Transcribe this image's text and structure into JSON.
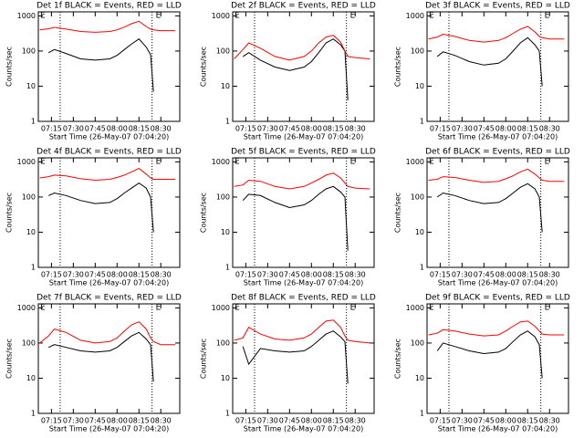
{
  "chart_data": [
    {
      "type": "line",
      "title": "Det 1f BLACK = Events, RED = LLD",
      "xlabel": "Start Time (26-May-07 07:04:20)",
      "ylabel": "Counts/sec",
      "log_y": true,
      "xlim": [
        "07:06",
        "08:43"
      ],
      "ylim": [
        1,
        1300
      ],
      "yticks": [
        1,
        10,
        100,
        1000
      ],
      "xticks": [
        "07:15",
        "07:30",
        "07:45",
        "08:00",
        "08:15",
        "08:30"
      ],
      "vlines": [
        "07:21",
        "08:24"
      ],
      "annotations": [
        "E",
        "E"
      ],
      "x": [
        "07:07",
        "07:13",
        "07:17",
        "07:25",
        "07:35",
        "07:45",
        "07:55",
        "08:00",
        "08:05",
        "08:10",
        "08:15",
        "08:20",
        "08:23",
        "08:25",
        "08:30",
        "08:40"
      ],
      "series": [
        {
          "color": "#000000",
          "values": [
            null,
            90,
            110,
            85,
            60,
            55,
            60,
            75,
            110,
            160,
            220,
            130,
            80,
            7,
            null,
            null
          ]
        },
        {
          "color": "#ff0000",
          "values": [
            400,
            430,
            470,
            420,
            360,
            340,
            360,
            400,
            480,
            600,
            700,
            500,
            420,
            400,
            380,
            380
          ]
        }
      ]
    },
    {
      "type": "line",
      "title": "Det 2f BLACK = Events, RED = LLD",
      "xlabel": "Start Time (26-May-07 07:04:20)",
      "ylabel": "Counts/sec",
      "log_y": true,
      "xlim": [
        "07:06",
        "08:43"
      ],
      "ylim": [
        1,
        1300
      ],
      "yticks": [
        1,
        10,
        100,
        1000
      ],
      "xticks": [
        "07:15",
        "07:30",
        "07:45",
        "08:00",
        "08:15",
        "08:30"
      ],
      "vlines": [
        "07:21",
        "08:24"
      ],
      "annotations": [
        "E",
        "E"
      ],
      "x": [
        "07:07",
        "07:13",
        "07:17",
        "07:25",
        "07:35",
        "07:45",
        "07:55",
        "08:00",
        "08:05",
        "08:10",
        "08:15",
        "08:20",
        "08:23",
        "08:25",
        "08:30",
        "08:40"
      ],
      "series": [
        {
          "color": "#000000",
          "values": [
            null,
            70,
            90,
            55,
            35,
            28,
            35,
            50,
            90,
            170,
            220,
            150,
            100,
            4,
            null,
            null
          ]
        },
        {
          "color": "#ff0000",
          "values": [
            60,
            110,
            170,
            120,
            70,
            55,
            70,
            100,
            170,
            250,
            280,
            180,
            100,
            70,
            65,
            60
          ]
        }
      ]
    },
    {
      "type": "line",
      "title": "Det 3f BLACK = Events, RED = LLD",
      "xlabel": "Start Time (26-May-07 07:04:20)",
      "ylabel": "Counts/sec",
      "log_y": true,
      "xlim": [
        "07:06",
        "08:43"
      ],
      "ylim": [
        1,
        1300
      ],
      "yticks": [
        1,
        10,
        100,
        1000
      ],
      "xticks": [
        "07:15",
        "07:30",
        "07:45",
        "08:00",
        "08:15",
        "08:30"
      ],
      "vlines": [
        "07:21",
        "08:24"
      ],
      "annotations": [
        "E",
        "E"
      ],
      "x": [
        "07:07",
        "07:13",
        "07:17",
        "07:25",
        "07:35",
        "07:45",
        "07:55",
        "08:00",
        "08:05",
        "08:10",
        "08:15",
        "08:20",
        "08:23",
        "08:25",
        "08:30",
        "08:40"
      ],
      "series": [
        {
          "color": "#000000",
          "values": [
            null,
            70,
            95,
            75,
            50,
            40,
            45,
            60,
            100,
            170,
            240,
            150,
            100,
            10,
            null,
            null
          ]
        },
        {
          "color": "#ff0000",
          "values": [
            220,
            250,
            300,
            260,
            200,
            180,
            200,
            240,
            320,
            420,
            500,
            350,
            260,
            240,
            220,
            220
          ]
        }
      ]
    },
    {
      "type": "line",
      "title": "Det 4f BLACK = Events, RED = LLD",
      "xlabel": "Start Time (26-May-07 07:04:20)",
      "ylabel": "Counts/sec",
      "log_y": true,
      "xlim": [
        "07:06",
        "08:43"
      ],
      "ylim": [
        1,
        1300
      ],
      "yticks": [
        1,
        10,
        100,
        1000
      ],
      "xticks": [
        "07:15",
        "07:30",
        "07:45",
        "08:00",
        "08:15",
        "08:30"
      ],
      "vlines": [
        "07:21",
        "08:24"
      ],
      "annotations": [
        "E",
        "E"
      ],
      "x": [
        "07:07",
        "07:13",
        "07:17",
        "07:25",
        "07:35",
        "07:45",
        "07:55",
        "08:00",
        "08:05",
        "08:10",
        "08:15",
        "08:20",
        "08:23",
        "08:25",
        "08:30",
        "08:40"
      ],
      "series": [
        {
          "color": "#000000",
          "values": [
            null,
            110,
            130,
            110,
            80,
            65,
            70,
            90,
            130,
            180,
            250,
            180,
            100,
            10,
            null,
            null
          ]
        },
        {
          "color": "#ff0000",
          "values": [
            350,
            380,
            420,
            400,
            330,
            300,
            320,
            360,
            420,
            520,
            650,
            450,
            350,
            320,
            320,
            320
          ]
        }
      ]
    },
    {
      "type": "line",
      "title": "Det 5f BLACK = Events, RED = LLD",
      "xlabel": "Start Time (26-May-07 07:04:20)",
      "ylabel": "Counts/sec",
      "log_y": true,
      "xlim": [
        "07:06",
        "08:43"
      ],
      "ylim": [
        1,
        1300
      ],
      "yticks": [
        1,
        10,
        100,
        1000
      ],
      "xticks": [
        "07:15",
        "07:30",
        "07:45",
        "08:00",
        "08:15",
        "08:30"
      ],
      "vlines": [
        "07:21",
        "08:24"
      ],
      "annotations": [
        "E",
        "E"
      ],
      "x": [
        "07:07",
        "07:13",
        "07:17",
        "07:25",
        "07:35",
        "07:45",
        "07:55",
        "08:00",
        "08:05",
        "08:10",
        "08:15",
        "08:20",
        "08:23",
        "08:25",
        "08:30",
        "08:40"
      ],
      "series": [
        {
          "color": "#000000",
          "values": [
            null,
            80,
            120,
            110,
            70,
            50,
            60,
            80,
            120,
            170,
            200,
            140,
            100,
            3,
            null,
            null
          ]
        },
        {
          "color": "#ff0000",
          "values": [
            200,
            220,
            300,
            280,
            200,
            170,
            200,
            250,
            320,
            420,
            480,
            350,
            250,
            200,
            180,
            170
          ]
        }
      ]
    },
    {
      "type": "line",
      "title": "Det 6f BLACK = Events, RED = LLD",
      "xlabel": "Start Time (26-May-07 07:04:20)",
      "ylabel": "Counts/sec",
      "log_y": true,
      "xlim": [
        "07:06",
        "08:43"
      ],
      "ylim": [
        1,
        1300
      ],
      "yticks": [
        1,
        10,
        100,
        1000
      ],
      "xticks": [
        "07:15",
        "07:30",
        "07:45",
        "08:00",
        "08:15",
        "08:30"
      ],
      "vlines": [
        "07:21",
        "08:24"
      ],
      "annotations": [
        "E",
        "E"
      ],
      "x": [
        "07:07",
        "07:13",
        "07:17",
        "07:25",
        "07:35",
        "07:45",
        "07:55",
        "08:00",
        "08:05",
        "08:10",
        "08:15",
        "08:20",
        "08:23",
        "08:25",
        "08:30",
        "08:40"
      ],
      "series": [
        {
          "color": "#000000",
          "values": [
            null,
            100,
            130,
            110,
            80,
            65,
            70,
            90,
            130,
            190,
            240,
            170,
            100,
            10,
            null,
            null
          ]
        },
        {
          "color": "#ff0000",
          "values": [
            300,
            320,
            380,
            360,
            300,
            260,
            280,
            330,
            400,
            520,
            620,
            450,
            350,
            300,
            280,
            280
          ]
        }
      ]
    },
    {
      "type": "line",
      "title": "Det 7f BLACK = Events, RED = LLD",
      "xlabel": "Start Time (26-May-07 07:04:20)",
      "ylabel": "Counts/sec",
      "log_y": true,
      "xlim": [
        "07:06",
        "08:43"
      ],
      "ylim": [
        1,
        1300
      ],
      "yticks": [
        1,
        10,
        100,
        1000
      ],
      "xticks": [
        "07:15",
        "07:30",
        "07:45",
        "08:00",
        "08:15",
        "08:30"
      ],
      "vlines": [
        "07:21",
        "08:24"
      ],
      "annotations": [
        "E",
        "E"
      ],
      "x": [
        "07:07",
        "07:13",
        "07:17",
        "07:25",
        "07:35",
        "07:45",
        "07:55",
        "08:00",
        "08:05",
        "08:10",
        "08:15",
        "08:20",
        "08:23",
        "08:25",
        "08:30",
        "08:40"
      ],
      "series": [
        {
          "color": "#000000",
          "values": [
            null,
            75,
            90,
            75,
            60,
            55,
            60,
            75,
            110,
            160,
            200,
            130,
            90,
            8,
            null,
            null
          ]
        },
        {
          "color": "#ff0000",
          "values": [
            100,
            160,
            250,
            200,
            120,
            100,
            110,
            140,
            220,
            330,
            400,
            250,
            140,
            110,
            90,
            90
          ]
        }
      ]
    },
    {
      "type": "line",
      "title": "Det 8f BLACK = Events, RED = LLD",
      "xlabel": "Start Time (26-May-07 07:04:20)",
      "ylabel": "Counts/sec",
      "log_y": true,
      "xlim": [
        "07:06",
        "08:43"
      ],
      "ylim": [
        1,
        1300
      ],
      "yticks": [
        1,
        10,
        100,
        1000
      ],
      "xticks": [
        "07:15",
        "07:30",
        "07:45",
        "08:00",
        "08:15",
        "08:30"
      ],
      "vlines": [
        "07:21",
        "08:24"
      ],
      "annotations": [
        "E",
        "E"
      ],
      "x": [
        "07:07",
        "07:13",
        "07:17",
        "07:25",
        "07:35",
        "07:45",
        "07:55",
        "08:00",
        "08:05",
        "08:10",
        "08:15",
        "08:20",
        "08:23",
        "08:25",
        "08:30",
        "08:40"
      ],
      "series": [
        {
          "color": "#000000",
          "values": [
            null,
            80,
            25,
            70,
            60,
            55,
            60,
            80,
            120,
            180,
            220,
            150,
            110,
            7,
            null,
            null
          ]
        },
        {
          "color": "#ff0000",
          "values": [
            120,
            140,
            280,
            180,
            130,
            120,
            140,
            180,
            280,
            420,
            450,
            280,
            160,
            120,
            110,
            100
          ]
        }
      ]
    },
    {
      "type": "line",
      "title": "Det 9f BLACK = Events, RED = LLD",
      "xlabel": "Start Time (26-May-07 07:04:20)",
      "ylabel": "Counts/sec",
      "log_y": true,
      "xlim": [
        "07:06",
        "08:43"
      ],
      "ylim": [
        1,
        1300
      ],
      "yticks": [
        1,
        10,
        100,
        1000
      ],
      "xticks": [
        "07:15",
        "07:30",
        "07:45",
        "08:00",
        "08:15",
        "08:30"
      ],
      "vlines": [
        "07:21",
        "08:24"
      ],
      "annotations": [
        "E",
        "E"
      ],
      "x": [
        "07:07",
        "07:13",
        "07:17",
        "07:25",
        "07:35",
        "07:45",
        "07:55",
        "08:00",
        "08:05",
        "08:10",
        "08:15",
        "08:20",
        "08:23",
        "08:25",
        "08:30",
        "08:40"
      ],
      "series": [
        {
          "color": "#000000",
          "values": [
            null,
            60,
            100,
            80,
            60,
            50,
            55,
            70,
            110,
            170,
            220,
            150,
            90,
            10,
            null,
            null
          ]
        },
        {
          "color": "#ff0000",
          "values": [
            170,
            190,
            240,
            220,
            180,
            160,
            170,
            220,
            300,
            400,
            420,
            300,
            220,
            180,
            170,
            170
          ]
        }
      ]
    }
  ]
}
